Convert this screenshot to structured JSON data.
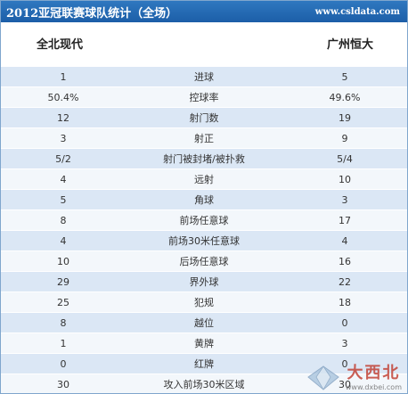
{
  "header": {
    "title": "2012亚冠联赛球队统计（全场）",
    "site": "www.csldata.com"
  },
  "teams": {
    "left": "全北现代",
    "right": "广州恒大"
  },
  "rows": [
    {
      "left": "1",
      "label": "进球",
      "right": "5"
    },
    {
      "left": "50.4%",
      "label": "控球率",
      "right": "49.6%"
    },
    {
      "left": "12",
      "label": "射门数",
      "right": "19"
    },
    {
      "left": "3",
      "label": "射正",
      "right": "9"
    },
    {
      "left": "5/2",
      "label": "射门被封堵/被扑救",
      "right": "5/4"
    },
    {
      "left": "4",
      "label": "远射",
      "right": "10"
    },
    {
      "left": "5",
      "label": "角球",
      "right": "3"
    },
    {
      "left": "8",
      "label": "前场任意球",
      "right": "17"
    },
    {
      "left": "4",
      "label": "前场30米任意球",
      "right": "4"
    },
    {
      "left": "10",
      "label": "后场任意球",
      "right": "16"
    },
    {
      "left": "29",
      "label": "界外球",
      "right": "22"
    },
    {
      "left": "25",
      "label": "犯规",
      "right": "18"
    },
    {
      "left": "8",
      "label": "越位",
      "right": "0"
    },
    {
      "left": "1",
      "label": "黄牌",
      "right": "3"
    },
    {
      "left": "0",
      "label": "红牌",
      "right": "0"
    },
    {
      "left": "30",
      "label": "攻入前场30米区域",
      "right": "30"
    }
  ],
  "watermark": {
    "brand": "大西北",
    "url": "www.dxbei.com",
    "icon": "diamond-logo-icon"
  }
}
